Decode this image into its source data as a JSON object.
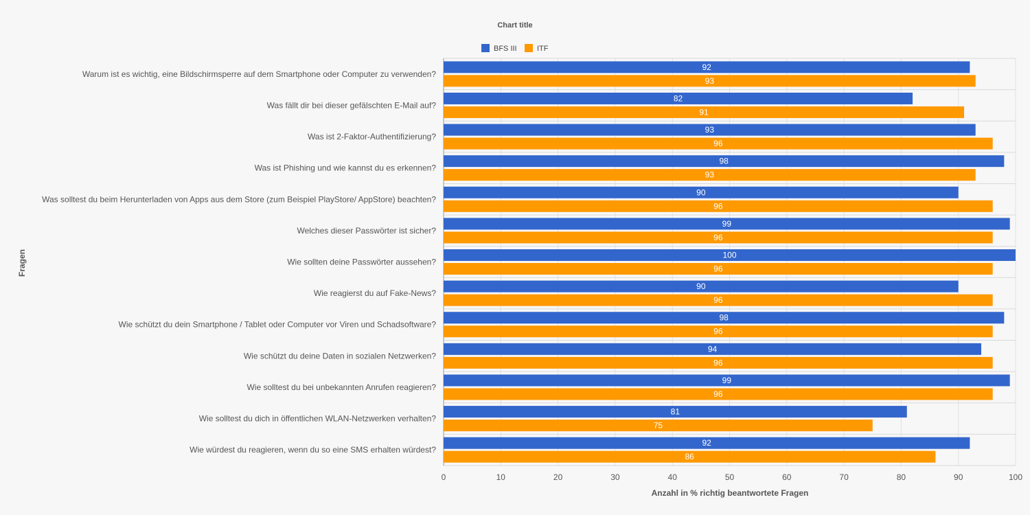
{
  "chart_data": {
    "type": "bar",
    "orientation": "horizontal",
    "title": "Chart title",
    "xlabel": "Anzahl in % richtig beantwortete Fragen",
    "ylabel": "Fragen",
    "xlim": [
      0,
      100
    ],
    "x_ticks": [
      0,
      10,
      20,
      30,
      40,
      50,
      60,
      70,
      80,
      90,
      100
    ],
    "grid": true,
    "legend_position": "top",
    "categories": [
      "Warum ist es wichtig, eine Bildschirmsperre auf dem Smartphone oder Computer zu verwenden?",
      "Was fällt dir bei dieser gefälschten E-Mail auf?",
      "Was ist 2-Faktor-Authentifizierung?",
      "Was ist Phishing und wie kannst du es erkennen?",
      "Was solltest du beim Herunterladen von Apps aus dem Store (zum Beispiel PlayStore/ AppStore) beachten?",
      "Welches dieser Passwörter ist sicher?",
      "Wie sollten deine Passwörter aussehen?",
      "Wie reagierst du auf Fake-News?",
      "Wie schützt du dein Smartphone / Tablet oder Computer vor Viren und Schadsoftware?",
      "Wie schützt du deine Daten in sozialen Netzwerken?",
      "Wie solltest du bei unbekannten Anrufen reagieren?",
      "Wie solltest du dich in öffentlichen WLAN-Netzwerken verhalten?",
      "Wie würdest du reagieren, wenn du so eine SMS erhalten würdest?"
    ],
    "series": [
      {
        "name": "BFS III",
        "color": "#3366cc",
        "values": [
          92,
          82,
          93,
          98,
          90,
          99,
          100,
          90,
          98,
          94,
          99,
          81,
          92
        ]
      },
      {
        "name": "ITF",
        "color": "#ff9900",
        "values": [
          93,
          91,
          96,
          93,
          96,
          96,
          96,
          96,
          96,
          96,
          96,
          75,
          86
        ]
      }
    ]
  }
}
